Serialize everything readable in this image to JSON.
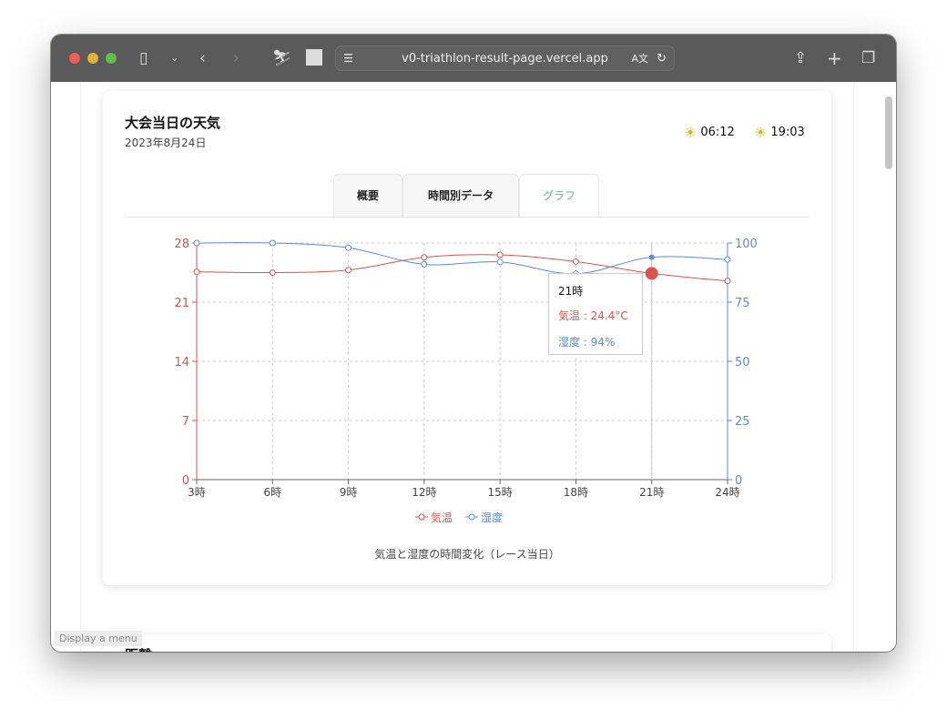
{
  "browser": {
    "url": "v0-triathlon-result-page.vercel.app",
    "tooltip": "Display a menu"
  },
  "weather": {
    "title": "大会当日の天気",
    "date": "2023年8月24日",
    "sunrise": "06:12",
    "sunset": "19:03"
  },
  "tabs": [
    {
      "label": "概要"
    },
    {
      "label": "時間別データ"
    },
    {
      "label": "グラフ",
      "active": true
    }
  ],
  "next_section": {
    "title": "距離"
  },
  "colors": {
    "temperature": "#d9534f",
    "humidity": "#5b8bd9",
    "active_tab": "#5cb883",
    "sun_icon": "#e6b800"
  },
  "chart_data": {
    "type": "line",
    "categories": [
      "3時",
      "6時",
      "9時",
      "12時",
      "15時",
      "18時",
      "21時",
      "24時"
    ],
    "series": [
      {
        "name": "気温",
        "axis": "left",
        "values": [
          24.6,
          24.5,
          24.8,
          26.3,
          26.6,
          25.8,
          24.4,
          23.5
        ]
      },
      {
        "name": "湿度",
        "axis": "right",
        "values": [
          100,
          100,
          98,
          91,
          92,
          87,
          94,
          93
        ]
      }
    ],
    "y_left": {
      "range": [
        0,
        28
      ],
      "ticks": [
        0,
        7,
        14,
        21,
        28
      ]
    },
    "y_right": {
      "range": [
        0,
        100
      ],
      "ticks": [
        0,
        25,
        50,
        75,
        100
      ]
    },
    "grid": true,
    "legend": "bottom",
    "caption": "気温と湿度の時間変化（レース当日）",
    "tooltip": {
      "title": "21時",
      "temp_label": "気温 : 24.4°C",
      "hum_label": "湿度 : 94%",
      "index": 6
    }
  }
}
